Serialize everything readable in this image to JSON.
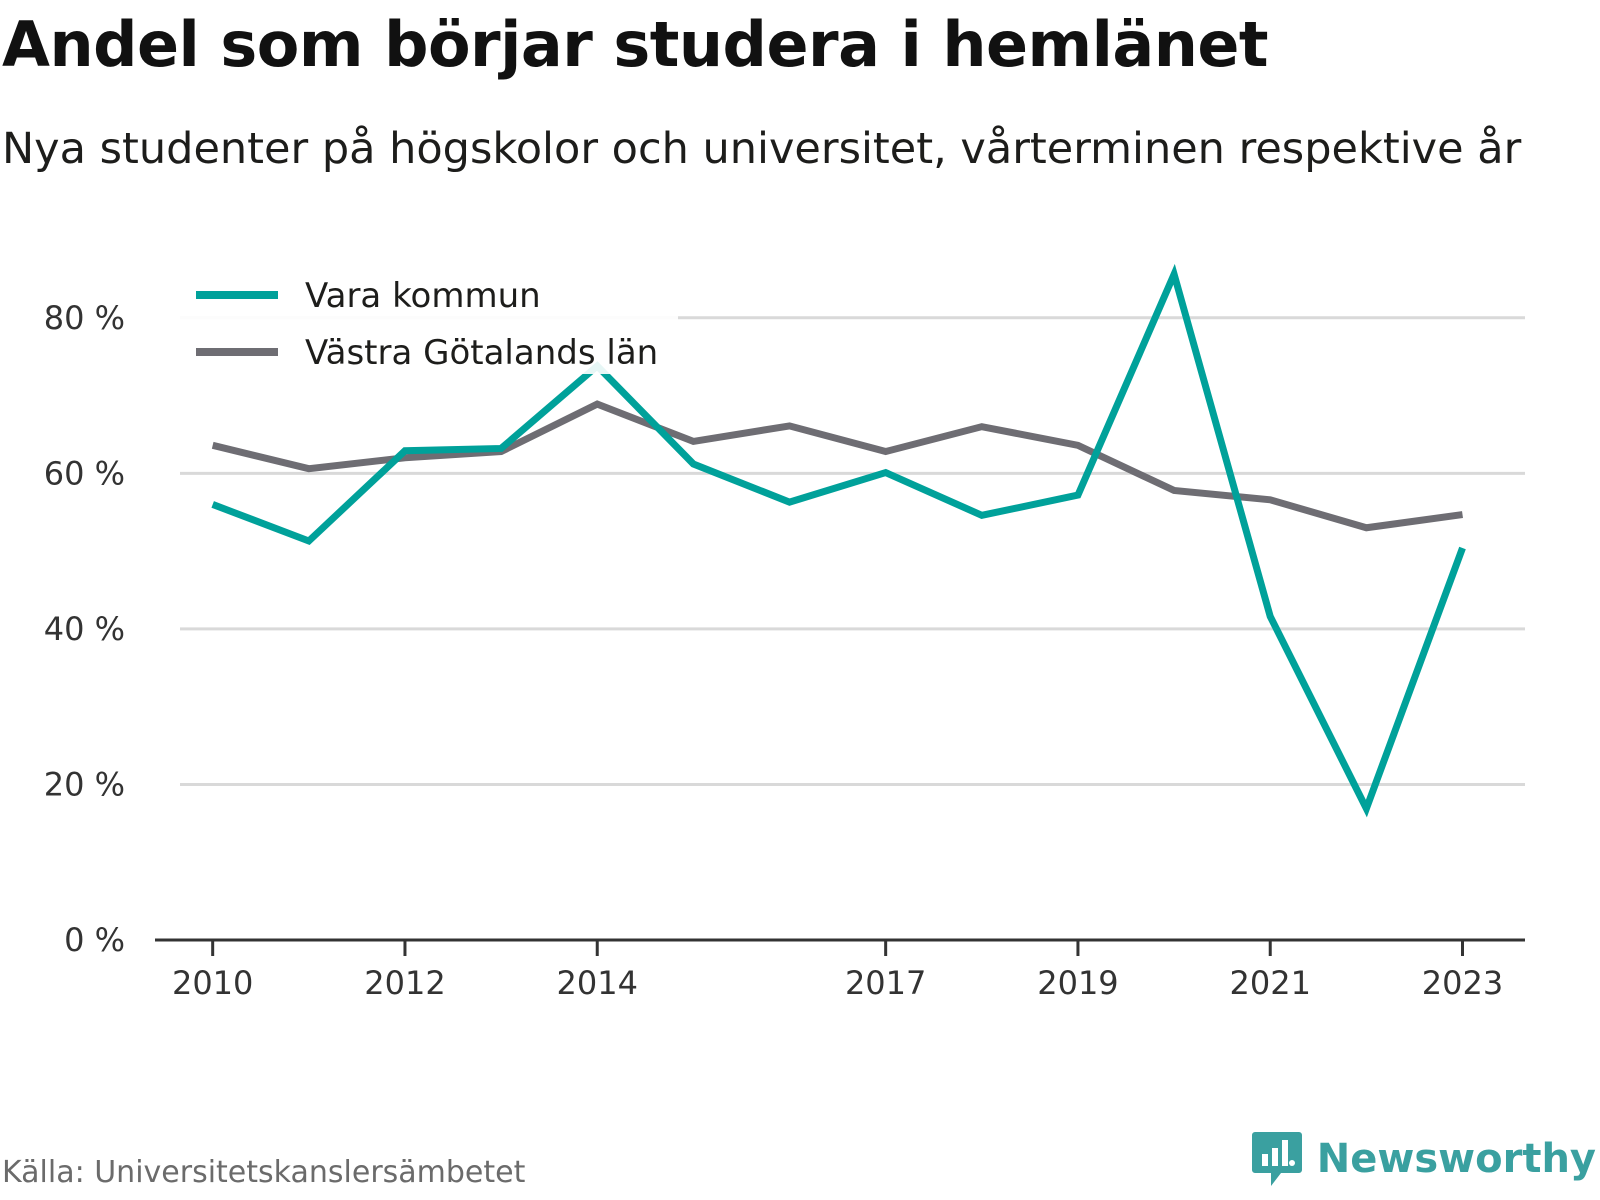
{
  "header": {
    "title": "Andel som börjar studera i hemlänet",
    "subtitle": "Nya studenter på högskolor och universitet, vårterminen respektive år"
  },
  "footer": {
    "source": "Källa: Universitetskanslersämbetet",
    "brand": "Newsworthy",
    "brand_icon": "chart-speech-bubble-icon"
  },
  "colors": {
    "vara": "#00a19a",
    "vgl": "#6e6d73",
    "grid": "#d9d9d9",
    "axis": "#333333",
    "brand": "#3aa0a0"
  },
  "chart_data": {
    "type": "line",
    "title": "Andel som börjar studera i hemlänet",
    "subtitle": "Nya studenter på högskolor och universitet, vårterminen respektive år",
    "x": [
      2010,
      2011,
      2012,
      2013,
      2014,
      2015,
      2016,
      2017,
      2018,
      2019,
      2020,
      2021,
      2022,
      2023
    ],
    "x_tick_labels": [
      "2010",
      "2012",
      "2014",
      "2017",
      "2019",
      "2021",
      "2023"
    ],
    "x_tick_values": [
      2010,
      2012,
      2014,
      2017,
      2019,
      2021,
      2023
    ],
    "y_tick_values": [
      0,
      20,
      40,
      60,
      80
    ],
    "y_tick_labels": [
      "0 %",
      "20 %",
      "40 %",
      "60 %",
      "80 %"
    ],
    "ylim": [
      0,
      90
    ],
    "xlim": [
      2009.4,
      2023.65
    ],
    "grid": true,
    "legend_position": "top-left",
    "series": [
      {
        "name": "Vara kommun",
        "color": "#00a19a",
        "values": [
          56,
          51.3,
          62.9,
          63.2,
          73.8,
          61.2,
          56.3,
          60.1,
          54.6,
          57.2,
          85.6,
          41.6,
          16.9,
          50.4
        ]
      },
      {
        "name": "Västra Götalands län",
        "color": "#6e6d73",
        "values": [
          63.6,
          60.6,
          62.0,
          62.8,
          68.9,
          64.1,
          66.1,
          62.8,
          66.0,
          63.6,
          57.8,
          56.6,
          53.0,
          54.7
        ]
      }
    ]
  }
}
